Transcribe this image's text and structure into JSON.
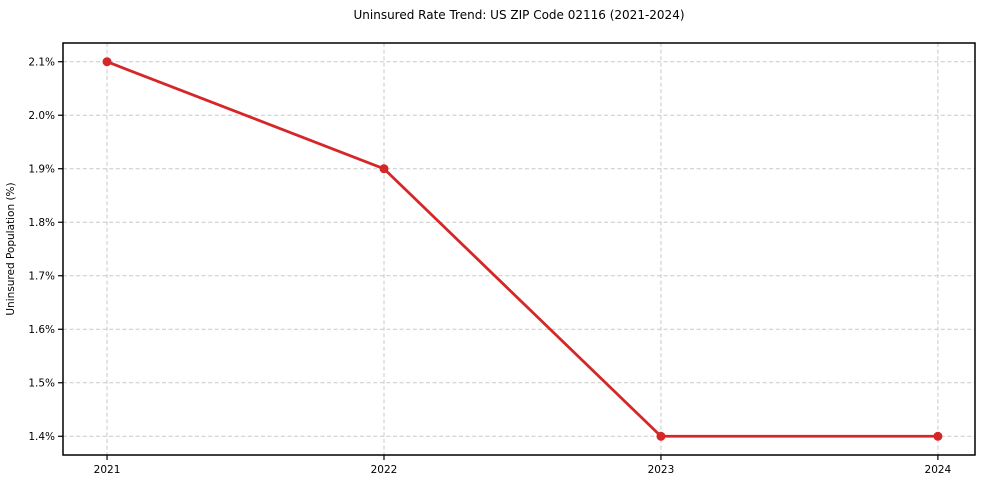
{
  "chart_data": {
    "type": "line",
    "title": "Uninsured Rate Trend: US ZIP Code 02116 (2021-2024)",
    "xlabel": "",
    "ylabel": "Uninsured Population (%)",
    "x": [
      2021,
      2022,
      2023,
      2024
    ],
    "xtick_labels": [
      "2021",
      "2022",
      "2023",
      "2024"
    ],
    "series": [
      {
        "name": "Uninsured rate",
        "values": [
          2.1,
          1.9,
          1.4,
          1.4
        ]
      }
    ],
    "ytick_values": [
      1.4,
      1.5,
      1.6,
      1.7,
      1.8,
      1.9,
      2.0,
      2.1
    ],
    "ytick_labels": [
      "1.4%",
      "1.5%",
      "1.6%",
      "1.7%",
      "1.8%",
      "1.9%",
      "2.0%",
      "2.1%"
    ],
    "xlim": [
      2020.841,
      2024.134
    ],
    "ylim": [
      1.365,
      2.135
    ],
    "grid": {
      "show": true,
      "style": "dashed",
      "color": "#c9c9c9"
    },
    "line_color": "#d62728",
    "marker": "circle",
    "legend": "none",
    "background": "#ffffff"
  }
}
